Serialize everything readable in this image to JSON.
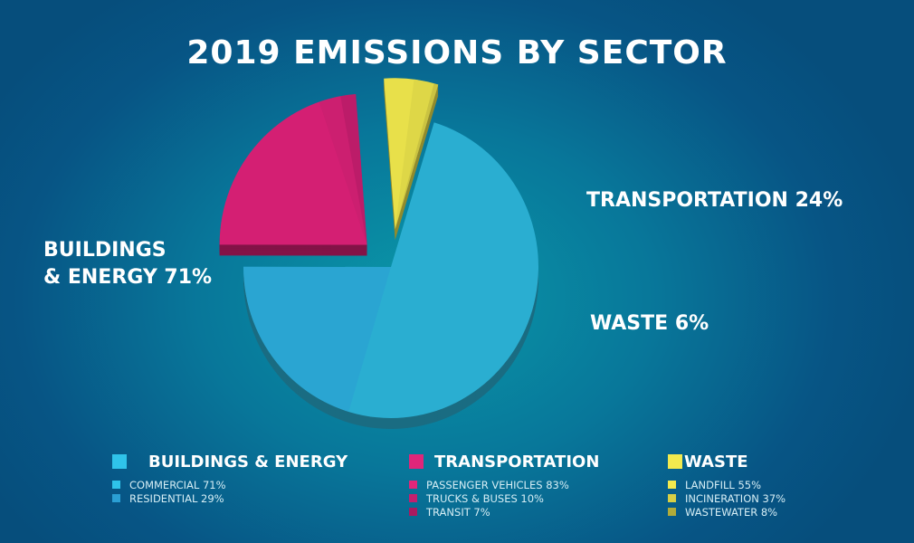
{
  "title": "2019 EMISSIONS BY SECTOR",
  "chart_data": {
    "type": "pie",
    "title": "2019 EMISSIONS BY SECTOR",
    "slices": [
      {
        "label": "BUILDINGS & ENERGY",
        "callout": "BUILDINGS & ENERGY 71%",
        "callout_line1": "BUILDINGS",
        "callout_line2": "& ENERGY 71%",
        "value": 71,
        "color": "#2aaed1"
      },
      {
        "label": "TRANSPORTATION",
        "callout": "TRANSPORTATION 24%",
        "value": 24,
        "color": "#d41f73"
      },
      {
        "label": "WASTE",
        "callout": "WASTE 6%",
        "value": 6,
        "color": "#e8e04a"
      }
    ],
    "legend": [
      {
        "heading": "BUILDINGS & ENERGY",
        "color": "#2fc3ea",
        "items": [
          {
            "label": "COMMERCIAL 71%",
            "value": 71,
            "color": "#2fc3ea"
          },
          {
            "label": "RESIDENTIAL 29%",
            "value": 29,
            "color": "#2a9fd4"
          }
        ]
      },
      {
        "heading": "TRANSPORTATION",
        "color": "#e0267a",
        "items": [
          {
            "label": "PASSENGER VEHICLES 83%",
            "value": 83,
            "color": "#e0267a"
          },
          {
            "label": "TRUCKS & BUSES 10%",
            "value": 10,
            "color": "#c41f6e"
          },
          {
            "label": "TRANSIT 7%",
            "value": 7,
            "color": "#a81a60"
          }
        ]
      },
      {
        "heading": "WASTE",
        "color": "#f2ea4e",
        "items": [
          {
            "label": "LANDFILL 55%",
            "value": 55,
            "color": "#f2ea4e"
          },
          {
            "label": "INCINERATION 37%",
            "value": 37,
            "color": "#d6cf45"
          },
          {
            "label": "WASTEWATER 8%",
            "value": 8,
            "color": "#b0ab3a"
          }
        ]
      }
    ]
  }
}
